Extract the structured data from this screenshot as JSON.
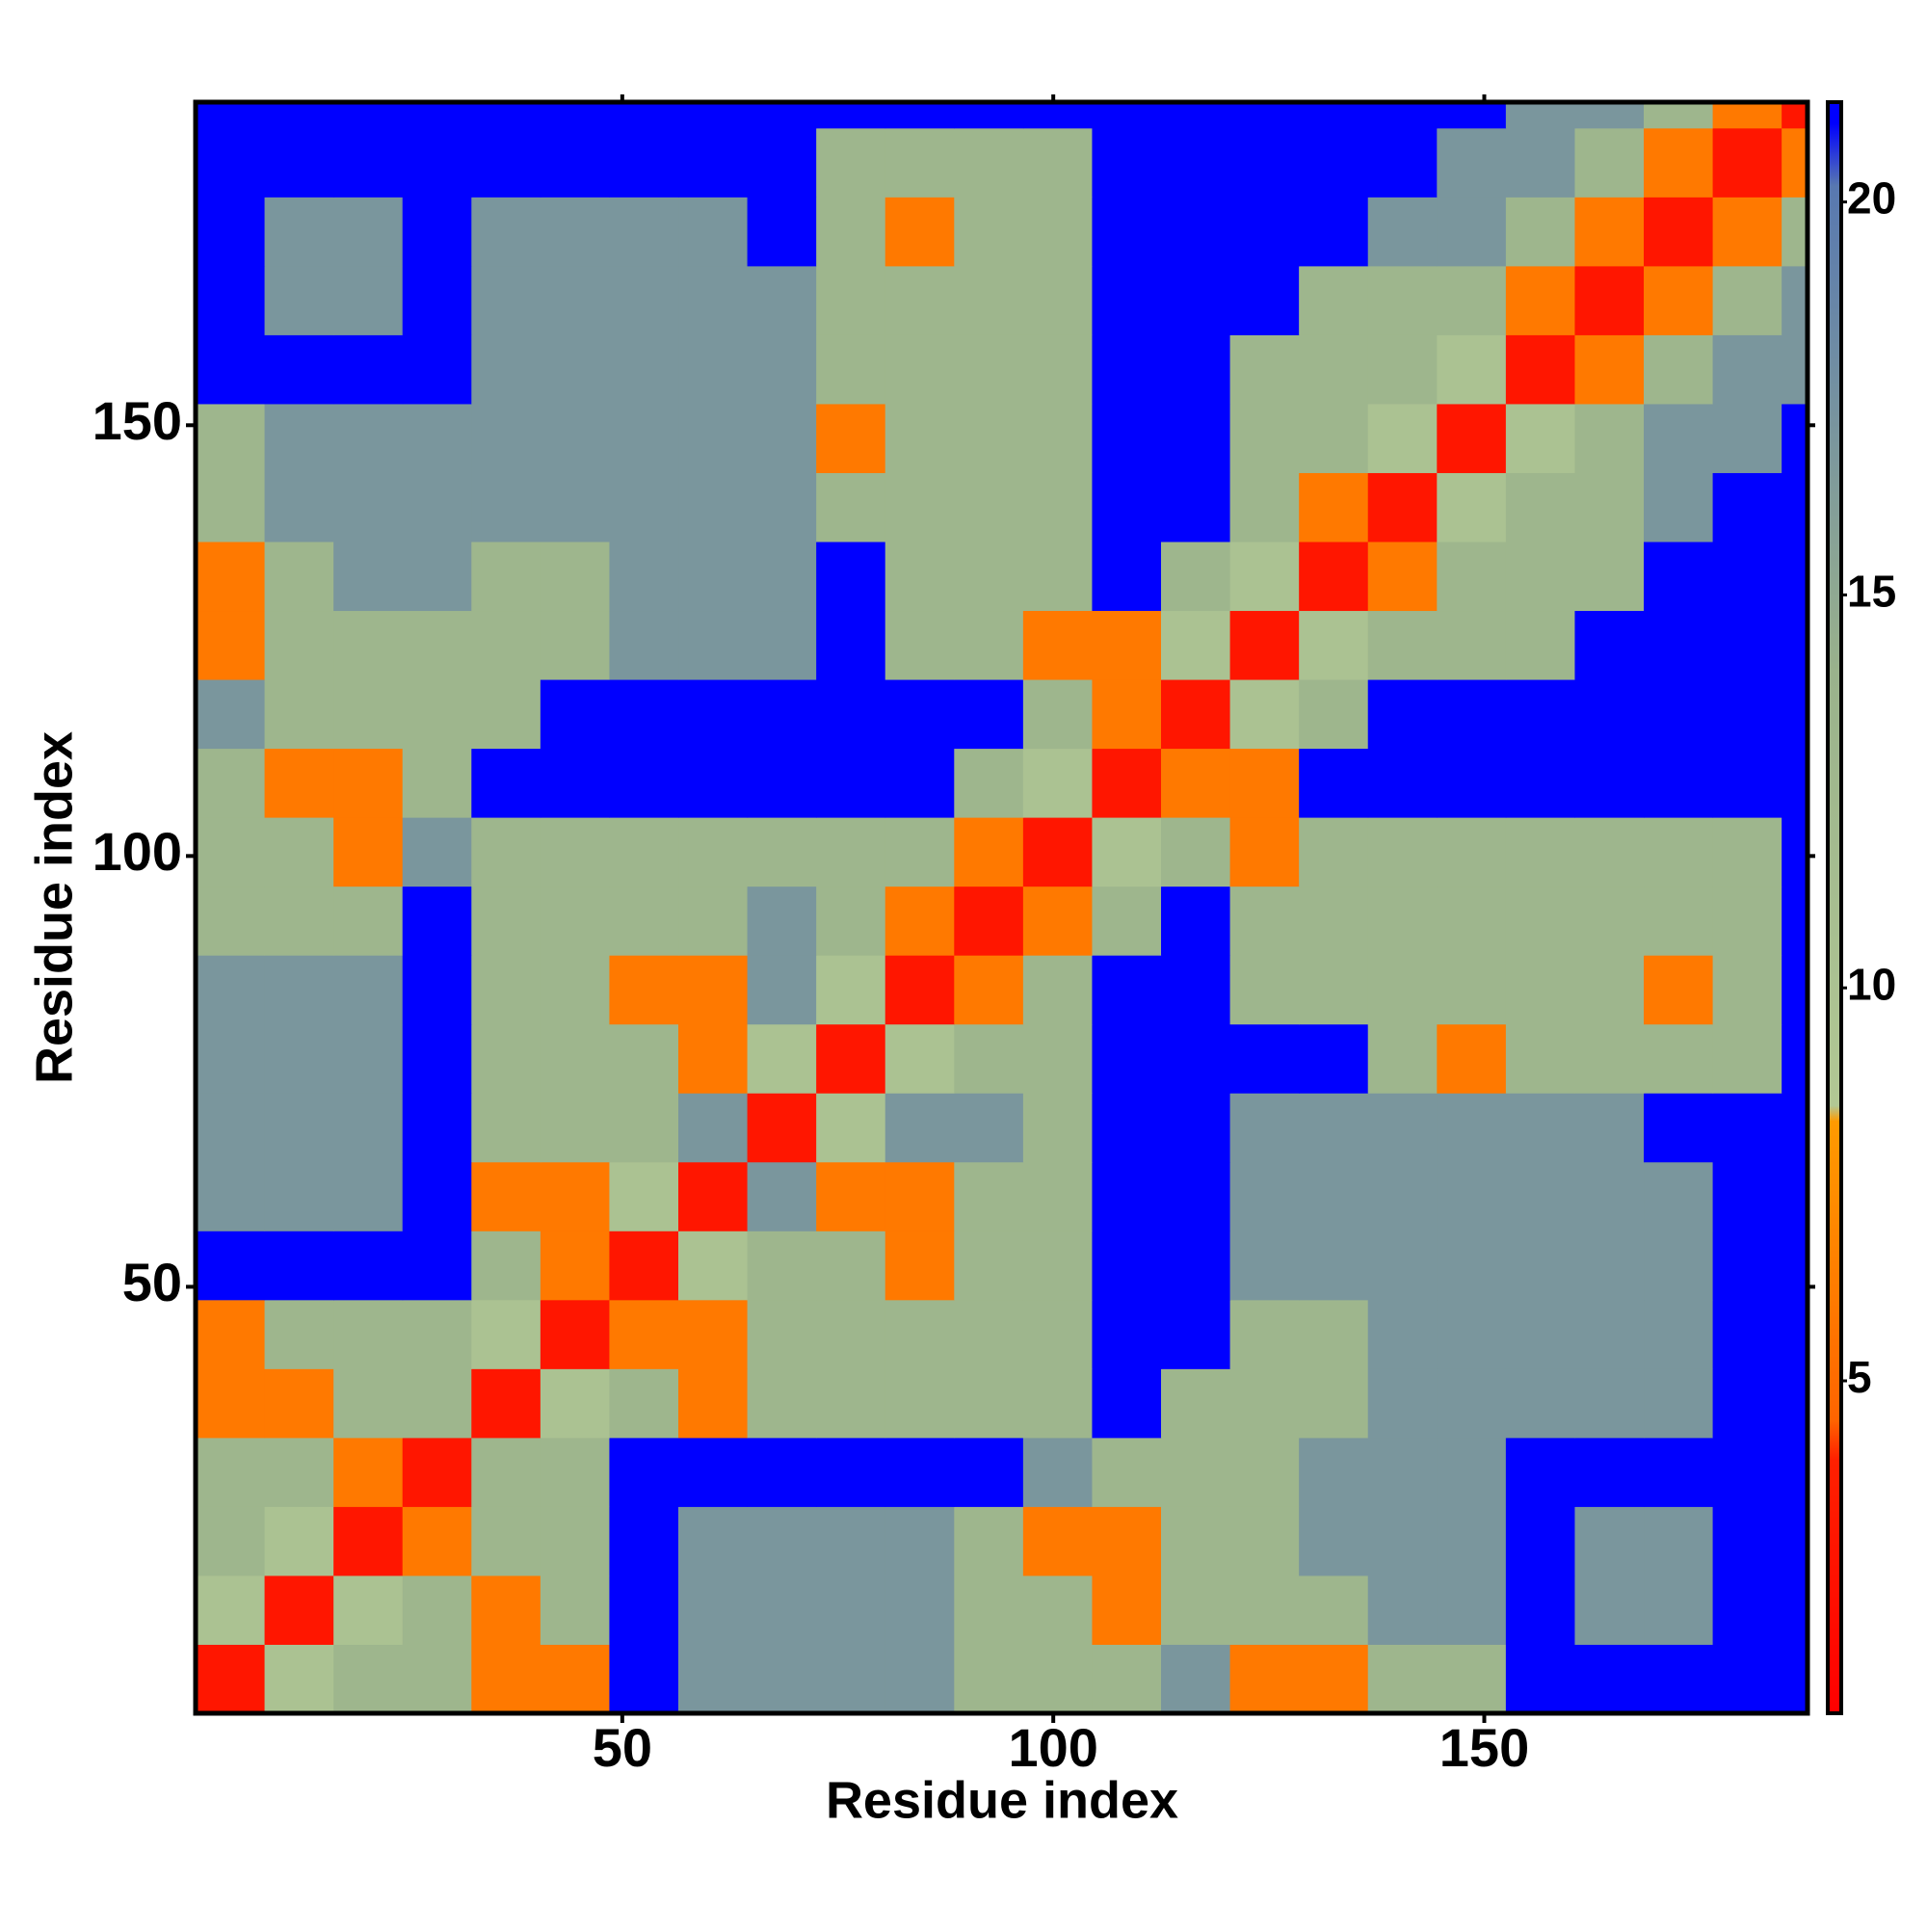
{
  "chart_data": {
    "type": "heatmap",
    "x_label": "Residue index",
    "y_label": "Residue index",
    "xlim": [
      0.5,
      187.5
    ],
    "ylim": [
      0.5,
      187.5
    ],
    "xticks": [
      50,
      100,
      150
    ],
    "yticks": [
      50,
      100,
      150
    ],
    "x_bins": [
      0.5,
      8.5,
      16.5,
      24.5,
      32.5,
      40.5,
      48.5,
      56.5,
      64.5,
      72.5,
      80.5,
      88.5,
      96.5,
      104.5,
      112.5,
      120.5,
      128.5,
      136.5,
      144.5,
      152.5,
      160.5,
      168.5,
      176.5,
      184.5,
      187.5
    ],
    "y_bins": [
      0.5,
      8.5,
      16.5,
      24.5,
      32.5,
      40.5,
      48.5,
      56.5,
      64.5,
      72.5,
      80.5,
      88.5,
      96.5,
      104.5,
      112.5,
      120.5,
      128.5,
      136.5,
      144.5,
      152.5,
      160.5,
      168.5,
      176.5,
      184.5,
      187.5
    ],
    "values": [
      [
        3,
        10,
        13,
        13,
        6,
        6,
        21,
        17,
        17,
        17,
        17,
        13,
        13,
        13,
        17,
        6,
        6,
        13,
        13,
        21,
        21,
        21,
        21,
        21
      ],
      [
        10,
        3,
        10,
        13,
        6,
        13,
        21,
        17,
        17,
        17,
        17,
        13,
        13,
        6,
        13,
        13,
        13,
        17,
        17,
        21,
        17,
        17,
        21,
        21
      ],
      [
        13,
        10,
        3,
        6,
        13,
        13,
        21,
        17,
        17,
        17,
        17,
        13,
        6,
        6,
        13,
        13,
        17,
        17,
        17,
        21,
        17,
        17,
        21,
        21
      ],
      [
        13,
        13,
        6,
        3,
        13,
        13,
        21,
        21,
        21,
        21,
        21,
        21,
        17,
        13,
        13,
        13,
        17,
        17,
        17,
        21,
        21,
        21,
        21,
        21
      ],
      [
        6,
        6,
        13,
        13,
        3,
        10,
        13,
        6,
        13,
        13,
        13,
        13,
        13,
        21,
        13,
        13,
        13,
        17,
        17,
        17,
        17,
        17,
        21,
        21
      ],
      [
        6,
        13,
        13,
        13,
        10,
        3,
        6,
        6,
        13,
        13,
        13,
        13,
        13,
        21,
        21,
        13,
        13,
        17,
        17,
        17,
        17,
        17,
        21,
        21
      ],
      [
        21,
        21,
        21,
        21,
        13,
        6,
        3,
        10,
        13,
        13,
        6,
        13,
        13,
        21,
        21,
        17,
        17,
        17,
        17,
        17,
        17,
        17,
        21,
        21
      ],
      [
        17,
        17,
        17,
        21,
        6,
        6,
        10,
        3,
        17,
        6,
        6,
        13,
        13,
        21,
        21,
        17,
        17,
        17,
        17,
        17,
        17,
        17,
        21,
        21
      ],
      [
        17,
        17,
        17,
        21,
        13,
        13,
        13,
        17,
        3,
        10,
        17,
        17,
        13,
        21,
        21,
        17,
        17,
        17,
        17,
        17,
        17,
        21,
        21,
        21
      ],
      [
        17,
        17,
        17,
        21,
        13,
        13,
        13,
        6,
        10,
        3,
        10,
        13,
        13,
        21,
        21,
        21,
        21,
        13,
        6,
        13,
        13,
        13,
        13,
        21
      ],
      [
        17,
        17,
        17,
        21,
        13,
        13,
        6,
        6,
        17,
        10,
        3,
        6,
        13,
        21,
        21,
        13,
        13,
        13,
        13,
        13,
        13,
        6,
        13,
        21
      ],
      [
        13,
        13,
        13,
        21,
        13,
        13,
        13,
        13,
        17,
        13,
        6,
        3,
        6,
        13,
        21,
        13,
        13,
        13,
        13,
        13,
        13,
        13,
        13,
        21
      ],
      [
        13,
        13,
        6,
        17,
        13,
        13,
        13,
        13,
        13,
        13,
        13,
        6,
        3,
        10,
        13,
        6,
        13,
        13,
        13,
        13,
        13,
        13,
        13,
        21
      ],
      [
        13,
        6,
        6,
        13,
        21,
        21,
        21,
        21,
        21,
        21,
        21,
        13,
        10,
        3,
        6,
        6,
        21,
        21,
        21,
        21,
        21,
        21,
        21,
        21
      ],
      [
        17,
        13,
        13,
        13,
        13,
        21,
        21,
        21,
        21,
        21,
        21,
        21,
        13,
        6,
        3,
        10,
        13,
        21,
        21,
        21,
        21,
        21,
        21,
        21
      ],
      [
        6,
        13,
        13,
        13,
        13,
        13,
        17,
        17,
        17,
        21,
        13,
        13,
        6,
        6,
        10,
        3,
        10,
        13,
        13,
        13,
        21,
        21,
        21,
        21
      ],
      [
        6,
        13,
        17,
        17,
        13,
        13,
        17,
        17,
        17,
        21,
        13,
        13,
        13,
        21,
        13,
        10,
        3,
        6,
        13,
        13,
        13,
        21,
        21,
        21
      ],
      [
        13,
        17,
        17,
        17,
        17,
        17,
        17,
        17,
        17,
        13,
        13,
        13,
        13,
        21,
        21,
        13,
        6,
        3,
        10,
        13,
        13,
        17,
        21,
        21
      ],
      [
        13,
        17,
        17,
        17,
        17,
        17,
        17,
        17,
        17,
        6,
        13,
        13,
        13,
        21,
        21,
        13,
        13,
        10,
        3,
        10,
        13,
        17,
        17,
        21
      ],
      [
        21,
        21,
        21,
        21,
        17,
        17,
        17,
        17,
        17,
        13,
        13,
        13,
        13,
        21,
        21,
        13,
        13,
        13,
        10,
        3,
        6,
        13,
        17,
        17
      ],
      [
        21,
        17,
        17,
        21,
        17,
        17,
        17,
        17,
        17,
        13,
        13,
        13,
        13,
        21,
        21,
        21,
        13,
        13,
        13,
        6,
        3,
        6,
        13,
        17
      ],
      [
        21,
        17,
        17,
        21,
        17,
        17,
        17,
        17,
        21,
        13,
        6,
        13,
        13,
        21,
        21,
        21,
        21,
        17,
        17,
        13,
        6,
        3,
        6,
        13
      ],
      [
        21,
        21,
        21,
        21,
        21,
        21,
        21,
        21,
        21,
        13,
        13,
        13,
        13,
        21,
        21,
        21,
        21,
        21,
        17,
        17,
        13,
        6,
        3,
        6
      ],
      [
        21,
        21,
        21,
        21,
        21,
        21,
        21,
        21,
        21,
        21,
        21,
        21,
        21,
        21,
        21,
        21,
        21,
        21,
        21,
        17,
        17,
        13,
        6,
        3
      ]
    ],
    "colorbar": {
      "lim": [
        0.77,
        21.27
      ],
      "ticks": [
        5,
        10,
        15,
        20
      ]
    },
    "colorscale": [
      {
        "value": 0.77,
        "color": "#ff0000"
      },
      {
        "value": 4,
        "color": "#ff2000"
      },
      {
        "value": 4.5,
        "color": "#ff6400"
      },
      {
        "value": 8.3,
        "color": "#ff9a00"
      },
      {
        "value": 8.5,
        "color": "#b2c894"
      },
      {
        "value": 14,
        "color": "#9ab28c"
      },
      {
        "value": 20.2,
        "color": "#5878b0"
      },
      {
        "value": 21,
        "color": "#0000ff"
      },
      {
        "value": 21.27,
        "color": "#0000ff"
      }
    ]
  }
}
